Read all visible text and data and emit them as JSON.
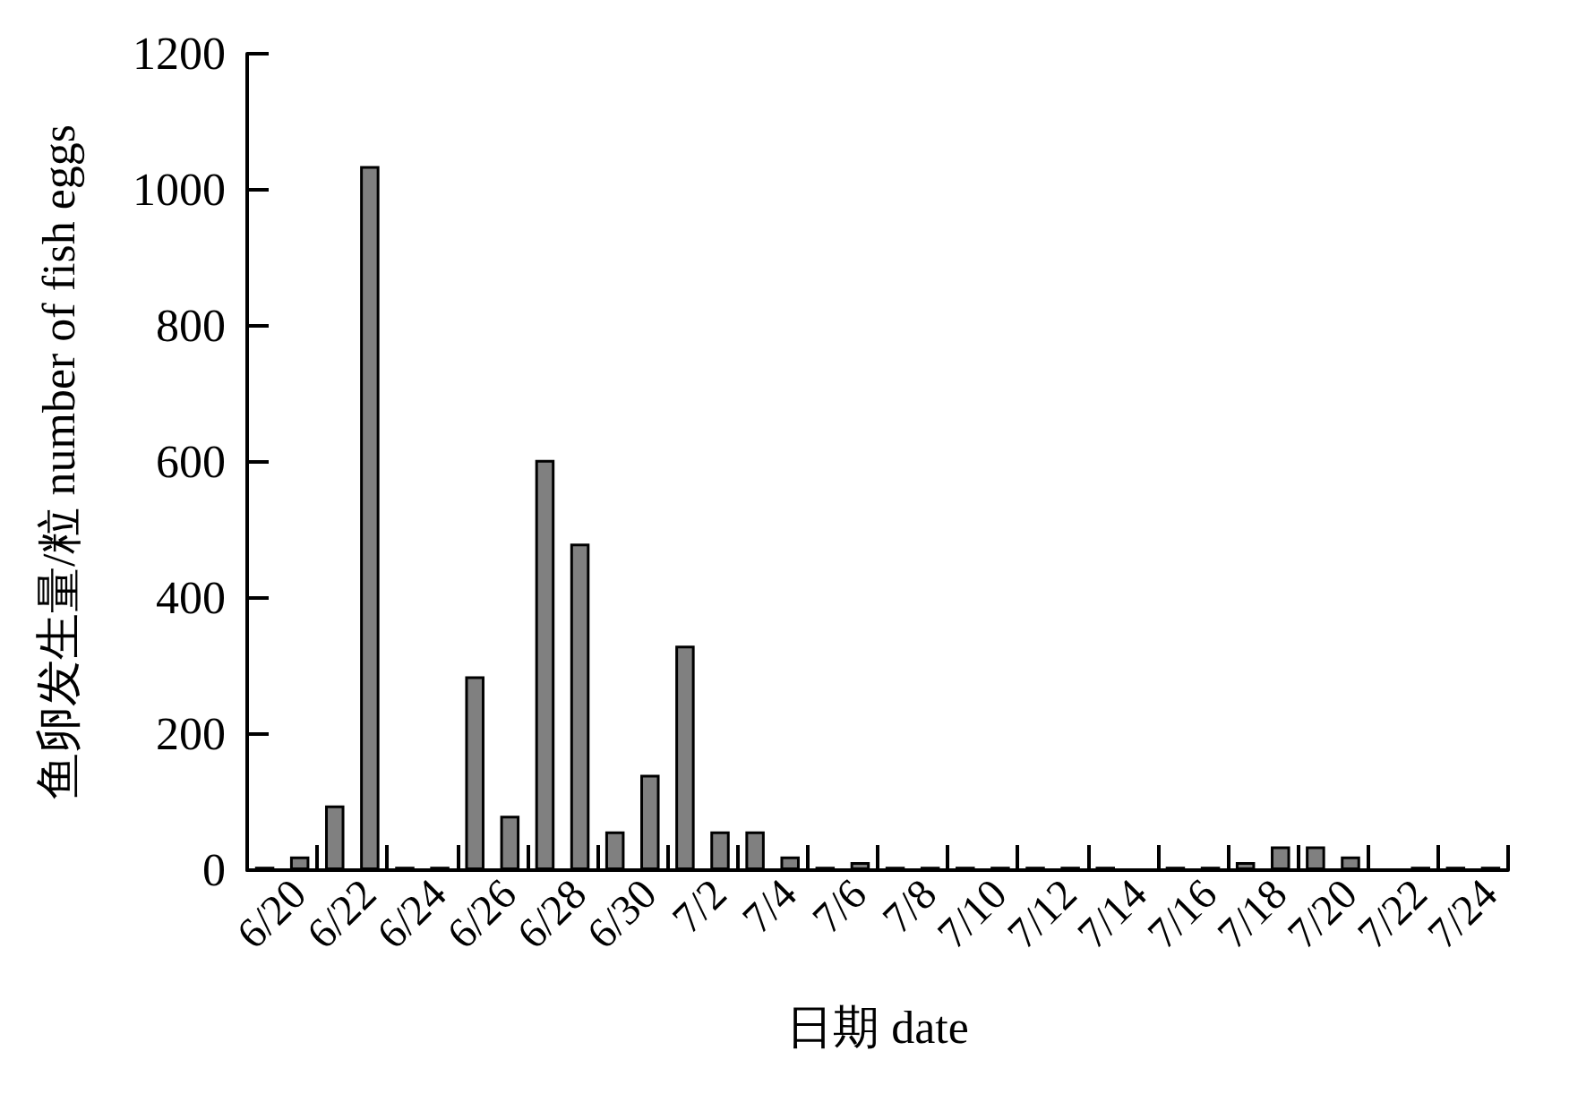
{
  "chart_data": {
    "type": "bar",
    "xlabel": "日期 date",
    "ylabel": "鱼卵发生量/粒 number of fish eggs",
    "categories": [
      null,
      "6/20",
      null,
      "6/22",
      null,
      "6/24",
      null,
      "6/26",
      null,
      "6/28",
      null,
      "6/30",
      null,
      "7/2",
      null,
      "7/4",
      null,
      "7/6",
      null,
      "7/8",
      null,
      "7/10",
      null,
      "7/12",
      null,
      "7/14",
      null,
      "7/16",
      null,
      "7/18",
      null,
      "7/20",
      null,
      "7/22",
      null,
      "7/24"
    ],
    "values": [
      5,
      20,
      95,
      1035,
      5,
      5,
      285,
      80,
      603,
      480,
      57,
      140,
      330,
      57,
      57,
      20,
      5,
      12,
      5,
      5,
      5,
      5,
      5,
      5,
      5,
      0,
      5,
      5,
      12,
      35,
      35,
      20,
      0,
      5,
      5,
      5
    ],
    "color": "#808080",
    "ylim": [
      0,
      1200
    ],
    "yticks": [
      0,
      200,
      400,
      600,
      800,
      1000,
      1200
    ],
    "grid": false
  }
}
